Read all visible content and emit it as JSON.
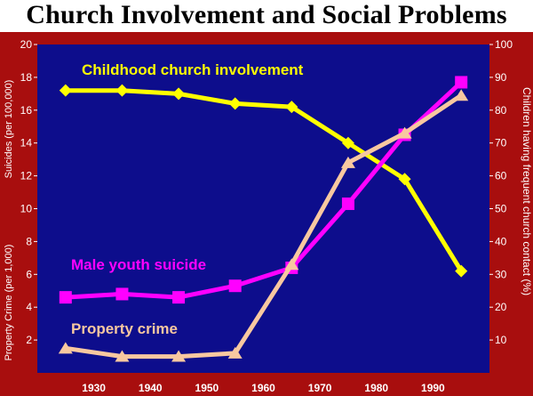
{
  "chart_data": {
    "type": "line",
    "title": "Church Involvement and Social Problems",
    "x_ticks": [
      "1930",
      "1940",
      "1950",
      "1960",
      "1970",
      "1980",
      "1990"
    ],
    "xlim": [
      1920,
      2000
    ],
    "left_axis": {
      "label_top": "Suicides (per 100,000)",
      "label_bottom": "Property Crime (per 1,000)",
      "range": [
        0,
        20
      ],
      "ticks": [
        "2",
        "4",
        "6",
        "8",
        "10",
        "12",
        "14",
        "16",
        "18",
        "20"
      ]
    },
    "right_axis": {
      "label": "Children having frequent church contact (%)",
      "range": [
        0,
        100
      ],
      "ticks": [
        "10",
        "20",
        "30",
        "40",
        "50",
        "60",
        "70",
        "80",
        "90",
        "100"
      ]
    },
    "grid": false,
    "series": [
      {
        "name": "Childhood church involvement",
        "axis": "right",
        "color": "#ffff00",
        "marker": "diamond",
        "x": [
          1925,
          1935,
          1945,
          1955,
          1965,
          1975,
          1985,
          1995
        ],
        "y": [
          86,
          86,
          85,
          82,
          81,
          70,
          59,
          31
        ]
      },
      {
        "name": "Male youth suicide",
        "axis": "left",
        "color": "#ff00ff",
        "marker": "square",
        "x": [
          1925,
          1935,
          1945,
          1955,
          1965,
          1975,
          1985,
          1995
        ],
        "y": [
          4.6,
          4.8,
          4.6,
          5.3,
          6.4,
          10.3,
          14.5,
          17.7
        ]
      },
      {
        "name": "Property crime",
        "axis": "left",
        "color": "#f8c8a0",
        "marker": "triangle",
        "x": [
          1925,
          1935,
          1945,
          1955,
          1965,
          1975,
          1985,
          1995
        ],
        "y": [
          1.5,
          1.0,
          1.0,
          1.2,
          6.6,
          12.8,
          14.6,
          16.9
        ]
      }
    ]
  }
}
